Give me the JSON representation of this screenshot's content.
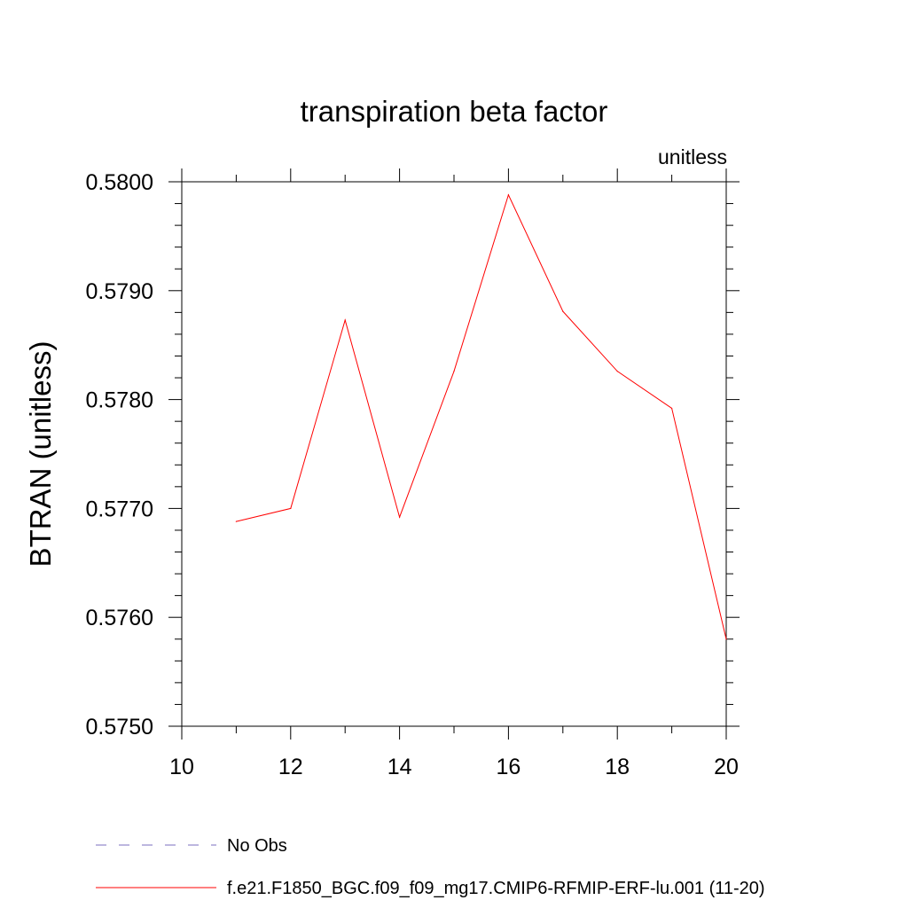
{
  "chart_data": {
    "type": "line",
    "title": "transpiration beta factor",
    "units_label": "unitless",
    "xlabel": "",
    "ylabel": "BTRAN  (unitless)",
    "xlim": [
      10,
      20
    ],
    "ylim": [
      0.575,
      0.58
    ],
    "x_major_ticks": [
      10,
      12,
      14,
      16,
      18,
      20
    ],
    "x_tick_labels": [
      "10",
      "12",
      "14",
      "16",
      "18",
      "20"
    ],
    "y_major_ticks": [
      0.575,
      0.576,
      0.577,
      0.578,
      0.579,
      0.58
    ],
    "y_tick_labels": [
      "0.5750",
      "0.5760",
      "0.5770",
      "0.5780",
      "0.5790",
      "0.5800"
    ],
    "grid": false,
    "legend_position": "bottom",
    "series": [
      {
        "name": "No Obs",
        "color": "#7b6fbf",
        "dash": "dashed",
        "x": [],
        "values": []
      },
      {
        "name": "f.e21.F1850_BGC.f09_f09_mg17.CMIP6-RFMIP-ERF-lu.001 (11-20)",
        "color": "#ff0000",
        "dash": "solid",
        "x": [
          11,
          12,
          13,
          14,
          15,
          16,
          17,
          18,
          19,
          20
        ],
        "values": [
          0.57688,
          0.577,
          0.57873,
          0.57692,
          0.57826,
          0.57988,
          0.57881,
          0.57826,
          0.57792,
          0.5758
        ]
      }
    ]
  }
}
